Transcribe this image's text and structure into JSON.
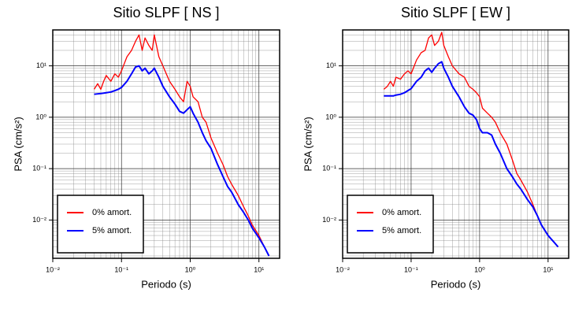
{
  "chart_data": [
    {
      "type": "line",
      "title": "Sitio SLPF [ NS ]",
      "x_label": "Periodo (s)",
      "y_label": "PSA (cm/s²)",
      "x": [
        0.04,
        0.045,
        0.05,
        0.055,
        0.06,
        0.07,
        0.08,
        0.09,
        0.1,
        0.12,
        0.14,
        0.16,
        0.18,
        0.2,
        0.22,
        0.25,
        0.28,
        0.3,
        0.35,
        0.4,
        0.5,
        0.6,
        0.7,
        0.8,
        0.9,
        1,
        1.1,
        1.3,
        1.5,
        1.7,
        2,
        2.5,
        3,
        3.5,
        4,
        5,
        6,
        7,
        8,
        10,
        12,
        14
      ],
      "series": [
        {
          "name": "0% amort.",
          "color": "#ff0000",
          "values": [
            3.5,
            4.5,
            3.5,
            5,
            6.5,
            5,
            7,
            6,
            8,
            15,
            20,
            30,
            40,
            20,
            35,
            25,
            20,
            40,
            15,
            10,
            5,
            3.5,
            2.5,
            2,
            5,
            4,
            2.5,
            2,
            1,
            0.8,
            0.4,
            0.2,
            0.12,
            0.07,
            0.05,
            0.03,
            0.018,
            0.012,
            0.008,
            0.005,
            0.003,
            0.002
          ]
        },
        {
          "name": "5% amort.",
          "color": "#0000ff",
          "values": [
            2.8,
            2.85,
            2.9,
            2.95,
            3.0,
            3.1,
            3.3,
            3.5,
            3.8,
            5,
            7,
            9.5,
            10,
            8,
            9,
            7,
            8,
            9,
            6,
            4,
            2.5,
            1.8,
            1.3,
            1.2,
            1.4,
            1.6,
            1.2,
            0.8,
            0.5,
            0.35,
            0.25,
            0.12,
            0.07,
            0.045,
            0.035,
            0.02,
            0.014,
            0.01,
            0.007,
            0.0045,
            0.003,
            0.002
          ]
        }
      ],
      "xlim": [
        0.01,
        20
      ],
      "ylim": [
        0.0018,
        50
      ],
      "log_x": true,
      "log_y": true,
      "grid": true,
      "legend": "lower left",
      "xticks": [
        {
          "value": 0.01,
          "label": "10⁻²"
        },
        {
          "value": 0.1,
          "label": "10⁻¹"
        },
        {
          "value": 1,
          "label": "10⁰"
        },
        {
          "value": 10,
          "label": "10¹"
        }
      ],
      "yticks": [
        {
          "value": 0.01,
          "label": "10⁻²"
        },
        {
          "value": 0.1,
          "label": "10⁻¹"
        },
        {
          "value": 1,
          "label": "10⁰"
        },
        {
          "value": 10,
          "label": "10¹"
        }
      ]
    },
    {
      "type": "line",
      "title": "Sitio SLPF [ EW ]",
      "x_label": "Periodo (s)",
      "y_label": "PSA (cm/s²)",
      "x": [
        0.04,
        0.045,
        0.05,
        0.055,
        0.06,
        0.07,
        0.08,
        0.09,
        0.1,
        0.12,
        0.14,
        0.16,
        0.18,
        0.2,
        0.22,
        0.25,
        0.28,
        0.3,
        0.35,
        0.4,
        0.5,
        0.6,
        0.7,
        0.8,
        0.9,
        1,
        1.1,
        1.3,
        1.5,
        1.7,
        2,
        2.5,
        3,
        3.5,
        4,
        5,
        6,
        7,
        8,
        10,
        12,
        14
      ],
      "series": [
        {
          "name": "0% amort.",
          "color": "#ff0000",
          "values": [
            3.5,
            4,
            5,
            4,
            6,
            5.5,
            7,
            8,
            7,
            13,
            18,
            20,
            35,
            40,
            25,
            30,
            45,
            25,
            15,
            10,
            7,
            6,
            4,
            3.5,
            3,
            2.5,
            1.5,
            1.2,
            1,
            0.8,
            0.5,
            0.3,
            0.15,
            0.08,
            0.06,
            0.035,
            0.02,
            0.012,
            0.008,
            0.005,
            0.0038,
            0.003
          ]
        },
        {
          "name": "5% amort.",
          "color": "#0000ff",
          "values": [
            2.6,
            2.6,
            2.6,
            2.6,
            2.7,
            2.8,
            3.0,
            3.3,
            3.6,
            5,
            6,
            8,
            9,
            7.5,
            9,
            11,
            12,
            9,
            6,
            4,
            2.5,
            1.6,
            1.2,
            1.1,
            0.9,
            0.6,
            0.5,
            0.5,
            0.45,
            0.3,
            0.2,
            0.1,
            0.07,
            0.05,
            0.04,
            0.025,
            0.018,
            0.012,
            0.008,
            0.005,
            0.0038,
            0.003
          ]
        }
      ],
      "xlim": [
        0.01,
        20
      ],
      "ylim": [
        0.0018,
        50
      ],
      "log_x": true,
      "log_y": true,
      "grid": true,
      "legend": "lower left",
      "xticks": [
        {
          "value": 0.01,
          "label": "10⁻²"
        },
        {
          "value": 0.1,
          "label": "10⁻¹"
        },
        {
          "value": 1,
          "label": "10⁰"
        },
        {
          "value": 10,
          "label": "10¹"
        }
      ],
      "yticks": [
        {
          "value": 0.01,
          "label": "10⁻²"
        },
        {
          "value": 0.1,
          "label": "10⁻¹"
        },
        {
          "value": 1,
          "label": "10⁰"
        },
        {
          "value": 10,
          "label": "10¹"
        }
      ]
    }
  ]
}
